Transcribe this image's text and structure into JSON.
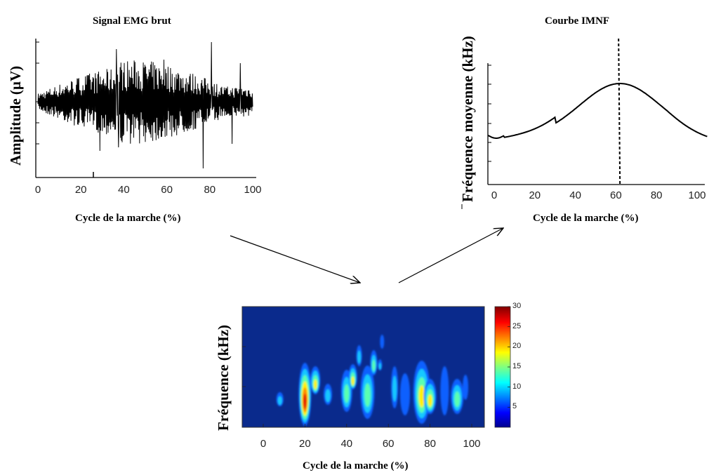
{
  "panels": {
    "emg": {
      "title": "Signal EMG brut",
      "ylabel": "Amplitude (µV)",
      "xlabel": "Cycle de la marche (%)",
      "xticks": [
        "0",
        "20",
        "40",
        "60",
        "80",
        "100"
      ]
    },
    "imnf": {
      "title": "Courbe IMNF",
      "ylabel": "Fréquence moyenne (kHz)",
      "xlabel": "Cycle de la marche (%)",
      "xticks": [
        "0",
        "20",
        "40",
        "60",
        "80",
        "100"
      ],
      "marker_x": 62
    },
    "spectro": {
      "ylabel": "Fréquence (kHz)",
      "xlabel": "Cycle de la marche (%)",
      "xticks": [
        "0",
        "20",
        "40",
        "60",
        "80",
        "100"
      ],
      "colorbar_ticks": [
        "30",
        "25",
        "20",
        "15",
        "10",
        "5"
      ],
      "colorbar_range": [
        0,
        30
      ]
    }
  },
  "colors": {
    "background_blue": "#0a2a8c",
    "line": "#000000"
  }
}
